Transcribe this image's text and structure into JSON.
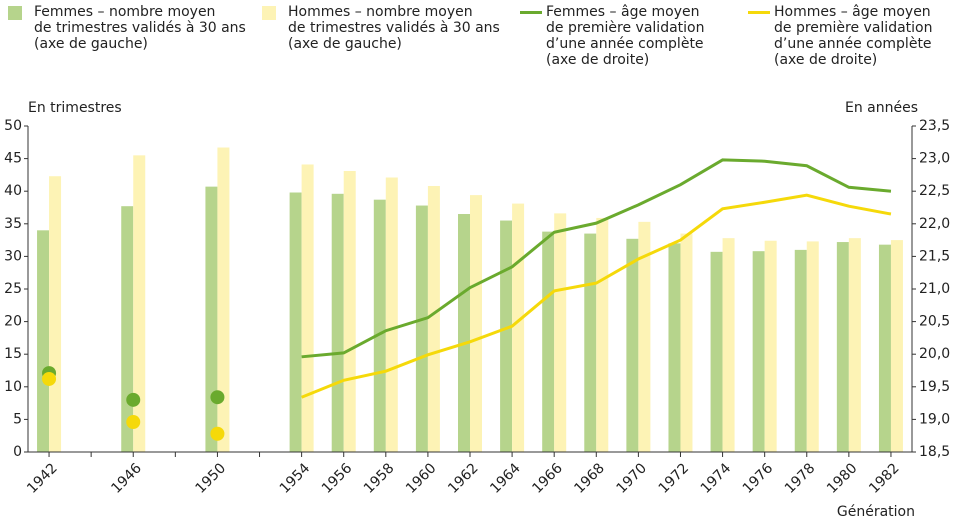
{
  "chart_data": {
    "type": "bar",
    "y_label": "En trimestres",
    "y2_label": "En années",
    "x_label": "Génération",
    "categories": [
      "1942",
      null,
      "1946",
      null,
      "1950",
      null,
      "1954",
      "1956",
      "1958",
      "1960",
      "1962",
      "1964",
      "1966",
      "1968",
      "1970",
      "1972",
      "1974",
      "1976",
      "1978",
      "1980",
      "1982"
    ],
    "series": [
      {
        "name": "Femmes – nombre moyen\nde trimestres validés à 30 ans\n(axe de gauche)",
        "type": "bar",
        "color": "#b6d48c",
        "values": [
          34,
          null,
          37.7,
          null,
          40.7,
          null,
          39.8,
          39.6,
          38.7,
          37.8,
          36.5,
          35.5,
          33.8,
          33.5,
          32.7,
          32,
          30.7,
          30.8,
          31,
          32.2,
          31.8
        ]
      },
      {
        "name": "Hommes – nombre moyen\nde trimestres validés à 30 ans\n(axe de gauche)",
        "type": "bar",
        "color": "#fdf3b5",
        "values": [
          42.3,
          null,
          45.5,
          null,
          46.7,
          null,
          44.1,
          43.1,
          42.1,
          40.8,
          39.4,
          38.1,
          36.6,
          35.9,
          35.3,
          33.5,
          32.8,
          32.4,
          32.3,
          32.8,
          32.5
        ]
      },
      {
        "name": "Femmes – âge moyen\nde première validation\nd’une année complète\n(axe de droite)",
        "type": "line",
        "axis": "y2",
        "color": "#6aaa2e",
        "values": [
          19.71,
          null,
          19.3,
          null,
          19.34,
          null,
          19.96,
          20.02,
          20.36,
          20.56,
          21.02,
          21.34,
          21.87,
          22.01,
          22.29,
          22.6,
          22.98,
          22.96,
          22.89,
          22.56,
          22.5
        ]
      },
      {
        "name": "Hommes – âge moyen\nde première validation\nd’une année complète\n(axe de droite)",
        "type": "line",
        "axis": "y2",
        "color": "#f5d90a",
        "values": [
          19.62,
          null,
          18.96,
          null,
          18.78,
          null,
          19.34,
          19.6,
          19.74,
          19.99,
          20.19,
          20.43,
          20.97,
          21.09,
          21.46,
          21.75,
          22.23,
          22.33,
          22.44,
          22.27,
          22.15
        ]
      }
    ],
    "ylim": [
      0,
      50
    ],
    "yticks": [
      0,
      5,
      10,
      15,
      20,
      25,
      30,
      35,
      40,
      45,
      50
    ],
    "y2lim": [
      18.5,
      23.5
    ],
    "y2ticks": [
      {
        "value": 18.5,
        "label": "18,5"
      },
      {
        "value": 19,
        "label": "19,0"
      },
      {
        "value": 19.5,
        "label": "19,5"
      },
      {
        "value": 20,
        "label": "20,0"
      },
      {
        "value": 20.5,
        "label": "20,5"
      },
      {
        "value": 21,
        "label": "21,0"
      },
      {
        "value": 21.5,
        "label": "21,5"
      },
      {
        "value": 22,
        "label": "22,0"
      },
      {
        "value": 22.5,
        "label": "22,5"
      },
      {
        "value": 23,
        "label": "23,0"
      },
      {
        "value": 23.5,
        "label": "23,5"
      }
    ],
    "grid": false,
    "legend": "top"
  }
}
